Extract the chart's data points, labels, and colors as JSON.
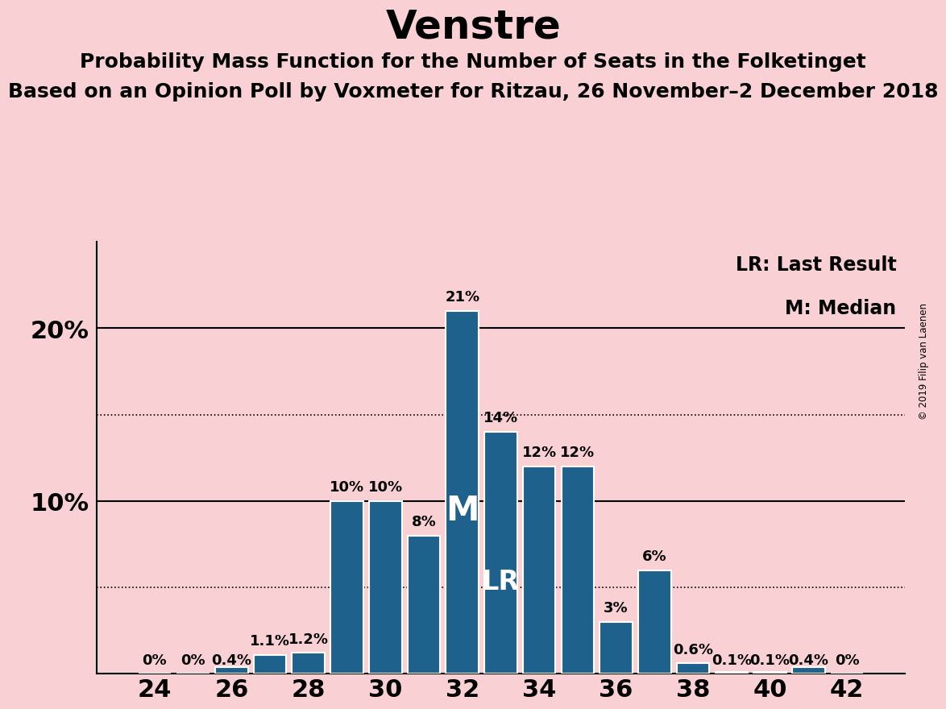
{
  "title": "Venstre",
  "subtitle1": "Probability Mass Function for the Number of Seats in the Folketinget",
  "subtitle2": "Based on an Opinion Poll by Voxmeter for Ritzau, 26 November–2 December 2018",
  "seats": [
    24,
    25,
    26,
    27,
    28,
    29,
    30,
    31,
    32,
    33,
    34,
    35,
    36,
    37,
    38,
    39,
    40,
    41,
    42
  ],
  "probabilities": [
    0.0,
    0.0,
    0.4,
    1.1,
    1.2,
    10.0,
    10.0,
    8.0,
    21.0,
    14.0,
    12.0,
    12.0,
    3.0,
    6.0,
    0.6,
    0.1,
    0.1,
    0.4,
    0.0
  ],
  "labels": [
    "0%",
    "0%",
    "0.4%",
    "1.1%",
    "1.2%",
    "10%",
    "10%",
    "8%",
    "21%",
    "14%",
    "12%",
    "12%",
    "3%",
    "6%",
    "0.6%",
    "0.1%",
    "0.1%",
    "0.4%",
    "0%"
  ],
  "bar_color": "#1f618d",
  "background_color": "#f9d0d4",
  "bar_edge_color": "white",
  "median_seat": 32,
  "lr_seat": 33,
  "median_label": "M",
  "lr_label": "LR",
  "legend_lr": "LR: Last Result",
  "legend_m": "M: Median",
  "dotted_lines": [
    5.0,
    15.0
  ],
  "solid_lines": [
    10.0,
    20.0
  ],
  "copyright": "© 2019 Filip van Laenen",
  "title_fontsize": 36,
  "subtitle_fontsize": 18,
  "bar_label_fontsize": 13,
  "tick_fontsize": 22,
  "legend_fontsize": 17,
  "median_label_fontsize": 30,
  "lr_label_fontsize": 24,
  "xtick_labels": [
    "24",
    "26",
    "28",
    "30",
    "32",
    "34",
    "36",
    "38",
    "40",
    "42"
  ],
  "ylim": [
    0,
    25
  ],
  "xlim": [
    22.5,
    43.5
  ]
}
